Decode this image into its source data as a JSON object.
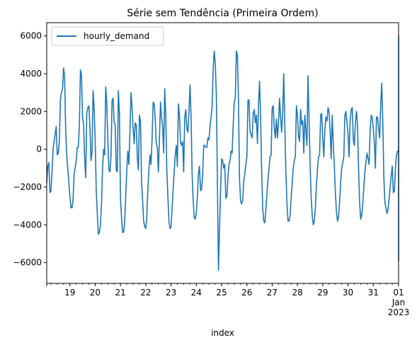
{
  "chart_data": {
    "type": "line",
    "title": "Série sem Tendência (Primeira Ordem)",
    "xlabel": "index",
    "ylabel": "",
    "x_range": [
      "2022-12-18T02:00",
      "2023-01-01T00:00"
    ],
    "ylim": [
      -7100,
      6700
    ],
    "y_ticks": [
      -6000,
      -4000,
      -2000,
      0,
      2000,
      4000,
      6000
    ],
    "y_tick_labels": [
      "−6000",
      "−4000",
      "−2000",
      "0",
      "2000",
      "4000",
      "6000"
    ],
    "x_ticks": [
      {
        "x": "2022-12-19T00:00",
        "label": "19",
        "major": true
      },
      {
        "x": "2022-12-20T00:00",
        "label": "20",
        "major": true
      },
      {
        "x": "2022-12-21T00:00",
        "label": "21",
        "major": true
      },
      {
        "x": "2022-12-22T00:00",
        "label": "22",
        "major": true
      },
      {
        "x": "2022-12-23T00:00",
        "label": "23",
        "major": true
      },
      {
        "x": "2022-12-24T00:00",
        "label": "24",
        "major": true
      },
      {
        "x": "2022-12-25T00:00",
        "label": "25",
        "major": true
      },
      {
        "x": "2022-12-26T00:00",
        "label": "26",
        "major": true
      },
      {
        "x": "2022-12-27T00:00",
        "label": "27",
        "major": true
      },
      {
        "x": "2022-12-28T00:00",
        "label": "28",
        "major": true
      },
      {
        "x": "2022-12-29T00:00",
        "label": "29",
        "major": true
      },
      {
        "x": "2022-12-30T00:00",
        "label": "30",
        "major": true
      },
      {
        "x": "2022-12-31T00:00",
        "label": "31",
        "major": true
      },
      {
        "x": "2023-01-01T00:00",
        "label": "01\nJan\n2023",
        "major": true
      }
    ],
    "legend": {
      "position": "upper-left"
    },
    "grid": false,
    "series": [
      {
        "name": "hourly_demand",
        "color": "#1f77b4",
        "x_start": "2022-12-18T02:00",
        "step_hours": 1,
        "values": [
          -1800,
          -900,
          -700,
          -2300,
          -2200,
          -1200,
          0,
          400,
          800,
          1200,
          -300,
          -200,
          400,
          2600,
          3000,
          3200,
          4300,
          3800,
          1000,
          -300,
          -1000,
          -1800,
          -2500,
          -3100,
          -3100,
          -2700,
          -1300,
          -1000,
          -600,
          100,
          100,
          1300,
          4200,
          3900,
          1700,
          1300,
          -500,
          -1500,
          1900,
          2200,
          2300,
          1200,
          -600,
          -200,
          3100,
          2200,
          500,
          -2200,
          -3400,
          -4500,
          -4400,
          -4000,
          -2900,
          -1000,
          0,
          -300,
          3300,
          2400,
          500,
          -1100,
          -1200,
          -400,
          2600,
          2700,
          1400,
          1300,
          -1100,
          -1200,
          3100,
          1900,
          -2600,
          -3600,
          -4400,
          -4400,
          -3800,
          -2500,
          -1100,
          -100,
          -800,
          1000,
          3000,
          2200,
          1100,
          300,
          1400,
          1300,
          -500,
          -1100,
          1800,
          1500,
          -1700,
          -2700,
          -3800,
          -4100,
          -4200,
          -3600,
          -2100,
          -1100,
          -300,
          -800,
          500,
          2500,
          2400,
          1600,
          300,
          100,
          -1200,
          600,
          2500,
          1700,
          1200,
          -200,
          3200,
          1800,
          -1100,
          -2500,
          -3800,
          -4200,
          -4100,
          -3100,
          -2100,
          -1200,
          -300,
          200,
          -900,
          2400,
          1800,
          400,
          200,
          400,
          -1200,
          1700,
          2100,
          1100,
          900,
          1900,
          3400,
          1800,
          -1300,
          -2700,
          -3600,
          -3700,
          -3400,
          -2500,
          -1300,
          -900,
          -2200,
          -2100,
          -1400,
          200,
          200,
          100,
          100,
          600,
          500,
          1200,
          1700,
          2300,
          4300,
          5200,
          4500,
          2900,
          -1600,
          -6400,
          -4300,
          -2200,
          -500,
          -600,
          -1000,
          -800,
          -2600,
          -2500,
          -1500,
          -800,
          -600,
          -100,
          -200,
          1300,
          2500,
          2700,
          5200,
          5000,
          2700,
          -1600,
          -2700,
          -2900,
          -2700,
          -1700,
          -1300,
          -800,
          -400,
          2600,
          2600,
          900,
          800,
          600,
          1900,
          2100,
          1400,
          1800,
          300,
          2300,
          3600,
          1800,
          -1100,
          -3100,
          -3800,
          -3900,
          -3200,
          -2400,
          -1600,
          -1000,
          -400,
          -300,
          2200,
          2300,
          1100,
          600,
          1600,
          600,
          1400,
          2700,
          1700,
          900,
          2000,
          4000,
          1300,
          -1200,
          -2800,
          -3800,
          -3800,
          -3500,
          -2600,
          -1800,
          -1000,
          -600,
          -400,
          2300,
          1800,
          700,
          400,
          2100,
          1300,
          1500,
          -200,
          1800,
          1000,
          200,
          3900,
          1600,
          -800,
          -2500,
          -3500,
          -4000,
          -3800,
          -3100,
          -1900,
          -1100,
          -400,
          -300,
          1800,
          1900,
          600,
          -400,
          1000,
          1700,
          1500,
          2200,
          2000,
          1000,
          -500,
          1800,
          300,
          -900,
          -2300,
          -3300,
          -3800,
          -3600,
          -2800,
          -1800,
          -1000,
          -700,
          -400,
          1800,
          2000,
          1400,
          800,
          -400,
          1500,
          2100,
          2200,
          500,
          200,
          1400,
          2000,
          1300,
          -1000,
          -2800,
          -3700,
          -3500,
          -2900,
          -2000,
          -1200,
          -700,
          -200,
          -500,
          -800,
          1000,
          1800,
          1700,
          1100,
          300,
          -1000,
          1700,
          1700,
          1100,
          600,
          2300,
          3500,
          1500,
          -1500,
          -2800,
          -3100,
          -3400,
          -3200,
          -2600,
          -2000,
          -1400,
          -900,
          -2300,
          -2200,
          -1000,
          -300,
          -100,
          -100,
          300,
          600,
          1000,
          1300,
          1800,
          2600,
          3200,
          3400,
          4300,
          5100,
          6000,
          -300,
          -5900,
          -5200,
          -3800,
          -2300
        ]
      }
    ]
  }
}
